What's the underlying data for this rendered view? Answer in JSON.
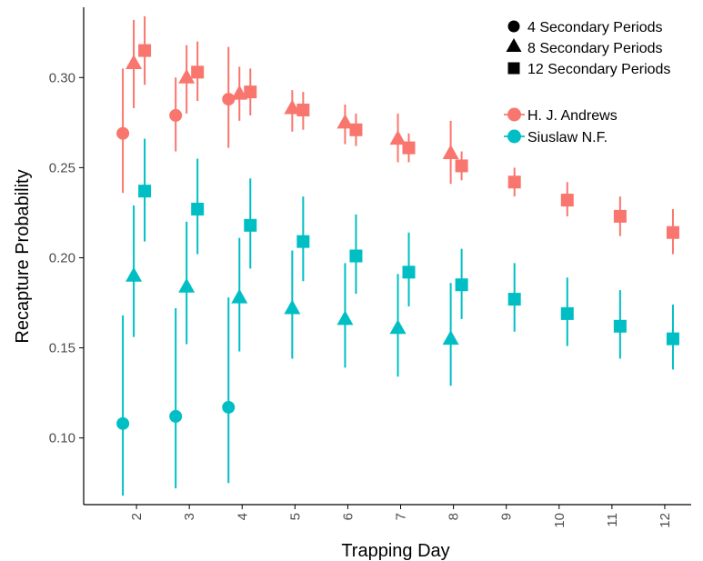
{
  "chart_data": {
    "type": "scatter",
    "xlabel": "Trapping Day",
    "ylabel": "Recapture Probability",
    "x_ticks": [
      2,
      3,
      4,
      5,
      6,
      7,
      8,
      9,
      10,
      11,
      12
    ],
    "y_ticks": [
      0.1,
      0.15,
      0.2,
      0.25,
      0.3
    ],
    "y_tick_labels": [
      "0.10",
      "0.15",
      "0.20",
      "0.25",
      "0.30"
    ],
    "xlim": [
      1,
      12.5
    ],
    "ylim": [
      0.063,
      0.339
    ],
    "grid": false,
    "legend_shapes": {
      "position": "top-right",
      "entries": [
        {
          "shape": "circle",
          "label": "4 Secondary Periods"
        },
        {
          "shape": "triangle",
          "label": "8 Secondary Periods"
        },
        {
          "shape": "square",
          "label": "12 Secondary Periods"
        }
      ]
    },
    "legend_sites": {
      "position": "top-right",
      "entries": [
        {
          "label": "H. J. Andrews",
          "color": "#F8766D"
        },
        {
          "label": "Siuslaw N.F.",
          "color": "#00BFC4"
        }
      ]
    },
    "series": [
      {
        "site": "H. J. Andrews",
        "shape": "circle",
        "color": "#F8766D",
        "points": [
          {
            "x": 2,
            "y": 0.269,
            "lo": 0.236,
            "hi": 0.305
          },
          {
            "x": 3,
            "y": 0.279,
            "lo": 0.259,
            "hi": 0.3
          },
          {
            "x": 4,
            "y": 0.288,
            "lo": 0.261,
            "hi": 0.317
          }
        ]
      },
      {
        "site": "H. J. Andrews",
        "shape": "triangle",
        "color": "#F8766D",
        "points": [
          {
            "x": 2,
            "y": 0.308,
            "lo": 0.283,
            "hi": 0.332
          },
          {
            "x": 3,
            "y": 0.3,
            "lo": 0.28,
            "hi": 0.318
          },
          {
            "x": 4,
            "y": 0.291,
            "lo": 0.276,
            "hi": 0.306
          },
          {
            "x": 5,
            "y": 0.283,
            "lo": 0.27,
            "hi": 0.293
          },
          {
            "x": 6,
            "y": 0.275,
            "lo": 0.263,
            "hi": 0.285
          },
          {
            "x": 7,
            "y": 0.266,
            "lo": 0.253,
            "hi": 0.28
          },
          {
            "x": 8,
            "y": 0.258,
            "lo": 0.241,
            "hi": 0.276
          }
        ]
      },
      {
        "site": "H. J. Andrews",
        "shape": "square",
        "color": "#F8766D",
        "points": [
          {
            "x": 2,
            "y": 0.315,
            "lo": 0.296,
            "hi": 0.334
          },
          {
            "x": 3,
            "y": 0.303,
            "lo": 0.287,
            "hi": 0.32
          },
          {
            "x": 4,
            "y": 0.292,
            "lo": 0.279,
            "hi": 0.305
          },
          {
            "x": 5,
            "y": 0.282,
            "lo": 0.271,
            "hi": 0.292
          },
          {
            "x": 6,
            "y": 0.271,
            "lo": 0.262,
            "hi": 0.28
          },
          {
            "x": 7,
            "y": 0.261,
            "lo": 0.253,
            "hi": 0.269
          },
          {
            "x": 8,
            "y": 0.251,
            "lo": 0.243,
            "hi": 0.259
          },
          {
            "x": 9,
            "y": 0.242,
            "lo": 0.234,
            "hi": 0.25
          },
          {
            "x": 10,
            "y": 0.232,
            "lo": 0.223,
            "hi": 0.242
          },
          {
            "x": 11,
            "y": 0.223,
            "lo": 0.212,
            "hi": 0.234
          },
          {
            "x": 12,
            "y": 0.214,
            "lo": 0.202,
            "hi": 0.227
          }
        ]
      },
      {
        "site": "Siuslaw N.F.",
        "shape": "circle",
        "color": "#00BFC4",
        "points": [
          {
            "x": 2,
            "y": 0.108,
            "lo": 0.068,
            "hi": 0.168
          },
          {
            "x": 3,
            "y": 0.112,
            "lo": 0.072,
            "hi": 0.172
          },
          {
            "x": 4,
            "y": 0.117,
            "lo": 0.075,
            "hi": 0.178
          }
        ]
      },
      {
        "site": "Siuslaw N.F.",
        "shape": "triangle",
        "color": "#00BFC4",
        "points": [
          {
            "x": 2,
            "y": 0.19,
            "lo": 0.156,
            "hi": 0.229
          },
          {
            "x": 3,
            "y": 0.184,
            "lo": 0.152,
            "hi": 0.22
          },
          {
            "x": 4,
            "y": 0.178,
            "lo": 0.148,
            "hi": 0.211
          },
          {
            "x": 5,
            "y": 0.172,
            "lo": 0.144,
            "hi": 0.204
          },
          {
            "x": 6,
            "y": 0.166,
            "lo": 0.139,
            "hi": 0.197
          },
          {
            "x": 7,
            "y": 0.161,
            "lo": 0.134,
            "hi": 0.191
          },
          {
            "x": 8,
            "y": 0.155,
            "lo": 0.129,
            "hi": 0.186
          }
        ]
      },
      {
        "site": "Siuslaw N.F.",
        "shape": "square",
        "color": "#00BFC4",
        "points": [
          {
            "x": 2,
            "y": 0.237,
            "lo": 0.209,
            "hi": 0.266
          },
          {
            "x": 3,
            "y": 0.227,
            "lo": 0.202,
            "hi": 0.255
          },
          {
            "x": 4,
            "y": 0.218,
            "lo": 0.194,
            "hi": 0.244
          },
          {
            "x": 5,
            "y": 0.209,
            "lo": 0.187,
            "hi": 0.234
          },
          {
            "x": 6,
            "y": 0.201,
            "lo": 0.18,
            "hi": 0.224
          },
          {
            "x": 7,
            "y": 0.192,
            "lo": 0.173,
            "hi": 0.214
          },
          {
            "x": 8,
            "y": 0.185,
            "lo": 0.166,
            "hi": 0.205
          },
          {
            "x": 9,
            "y": 0.177,
            "lo": 0.159,
            "hi": 0.197
          },
          {
            "x": 10,
            "y": 0.169,
            "lo": 0.151,
            "hi": 0.189
          },
          {
            "x": 11,
            "y": 0.162,
            "lo": 0.144,
            "hi": 0.182
          },
          {
            "x": 12,
            "y": 0.155,
            "lo": 0.138,
            "hi": 0.174
          }
        ]
      }
    ]
  }
}
